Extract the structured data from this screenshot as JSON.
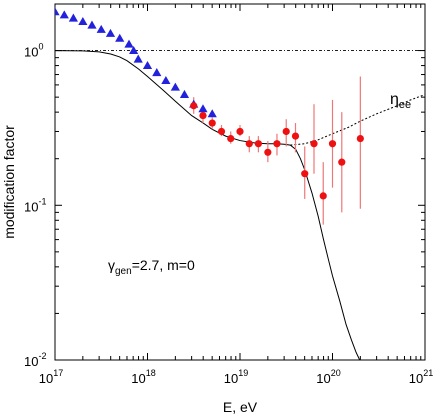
{
  "chart_data": {
    "type": "scatter",
    "title": "",
    "xlabel": "E, eV",
    "ylabel": "modification factor",
    "x_scale": "log",
    "y_scale": "log",
    "xlim": [
      1e+17,
      1e+21
    ],
    "ylim": [
      0.01,
      2.0
    ],
    "x_ticks": [
      {
        "value": 1e+17,
        "base": "10",
        "exp": "17"
      },
      {
        "value": 1e+18,
        "base": "10",
        "exp": "18"
      },
      {
        "value": 1e+19,
        "base": "10",
        "exp": "19"
      },
      {
        "value": 1e+20,
        "base": "10",
        "exp": "20"
      },
      {
        "value": 1e+21,
        "base": "10",
        "exp": "21"
      }
    ],
    "y_ticks": [
      {
        "value": 1.0,
        "base": "10",
        "exp": "0"
      },
      {
        "value": 0.1,
        "base": "10",
        "exp": "-1"
      },
      {
        "value": 0.01,
        "base": "10",
        "exp": "-2"
      }
    ],
    "annotation": {
      "gamma": "γ",
      "sub": "gen",
      "rest": "=2.7, m=0"
    },
    "curve_label": {
      "main": "η",
      "sub": "ee"
    },
    "colors": {
      "triangles": "#2222dd",
      "circles": "#ee1111",
      "errorbars": "#ee7777",
      "curves": "#000000"
    },
    "series": [
      {
        "marker": "triangle",
        "points": [
          {
            "x": 1e+17,
            "y": 1.78
          },
          {
            "x": 1.26e+17,
            "y": 1.7
          },
          {
            "x": 1.58e+17,
            "y": 1.62
          },
          {
            "x": 2e+17,
            "y": 1.54
          },
          {
            "x": 2.51e+17,
            "y": 1.46
          },
          {
            "x": 3.16e+17,
            "y": 1.37
          },
          {
            "x": 3.98e+17,
            "y": 1.29
          },
          {
            "x": 5.01e+17,
            "y": 1.2
          },
          {
            "x": 6.31e+17,
            "y": 1.1
          },
          {
            "x": 7.08e+17,
            "y": 1.0
          },
          {
            "x": 7.94e+17,
            "y": 0.88
          },
          {
            "x": 1e+18,
            "y": 0.8
          },
          {
            "x": 1.26e+18,
            "y": 0.72
          },
          {
            "x": 1.58e+18,
            "y": 0.64
          },
          {
            "x": 2e+18,
            "y": 0.58
          },
          {
            "x": 2.51e+18,
            "y": 0.52
          },
          {
            "x": 3.16e+18,
            "y": 0.45
          },
          {
            "x": 3.98e+18,
            "y": 0.42
          },
          {
            "x": 5.01e+18,
            "y": 0.39
          }
        ]
      },
      {
        "marker": "circle",
        "points": [
          {
            "x": 3.16e+18,
            "y": 0.44,
            "lo": 0.39,
            "hi": 0.5
          },
          {
            "x": 3.98e+18,
            "y": 0.38,
            "lo": 0.34,
            "hi": 0.42
          },
          {
            "x": 5.01e+18,
            "y": 0.34,
            "lo": 0.31,
            "hi": 0.37
          },
          {
            "x": 6.31e+18,
            "y": 0.3,
            "lo": 0.28,
            "hi": 0.33
          },
          {
            "x": 7.94e+18,
            "y": 0.27,
            "lo": 0.25,
            "hi": 0.3
          },
          {
            "x": 1e+19,
            "y": 0.3,
            "lo": 0.28,
            "hi": 0.33
          },
          {
            "x": 1.26e+19,
            "y": 0.25,
            "lo": 0.22,
            "hi": 0.28
          },
          {
            "x": 1.58e+19,
            "y": 0.25,
            "lo": 0.22,
            "hi": 0.28
          },
          {
            "x": 2e+19,
            "y": 0.22,
            "lo": 0.19,
            "hi": 0.26
          },
          {
            "x": 2.51e+19,
            "y": 0.25,
            "lo": 0.21,
            "hi": 0.29
          },
          {
            "x": 3.16e+19,
            "y": 0.3,
            "lo": 0.24,
            "hi": 0.36
          },
          {
            "x": 3.98e+19,
            "y": 0.28,
            "lo": 0.22,
            "hi": 0.34
          },
          {
            "x": 5.01e+19,
            "y": 0.16,
            "lo": 0.11,
            "hi": 0.24
          },
          {
            "x": 6.31e+19,
            "y": 0.25,
            "lo": 0.16,
            "hi": 0.45
          },
          {
            "x": 7.94e+19,
            "y": 0.115,
            "lo": 0.075,
            "hi": 0.19
          },
          {
            "x": 1e+20,
            "y": 0.25,
            "lo": 0.13,
            "hi": 0.48
          },
          {
            "x": 1.26e+20,
            "y": 0.19,
            "lo": 0.09,
            "hi": 0.4
          },
          {
            "x": 2e+20,
            "y": 0.27,
            "lo": 0.095,
            "hi": 0.68
          }
        ]
      },
      {
        "marker": "line-solid",
        "points": [
          {
            "x": 1e+17,
            "y": 1.0
          },
          {
            "x": 2e+17,
            "y": 0.995
          },
          {
            "x": 3e+17,
            "y": 0.98
          },
          {
            "x": 4e+17,
            "y": 0.95
          },
          {
            "x": 5e+17,
            "y": 0.91
          },
          {
            "x": 6e+17,
            "y": 0.86
          },
          {
            "x": 8e+17,
            "y": 0.76
          },
          {
            "x": 1e+18,
            "y": 0.68
          },
          {
            "x": 1.5e+18,
            "y": 0.55
          },
          {
            "x": 2e+18,
            "y": 0.47
          },
          {
            "x": 3e+18,
            "y": 0.38
          },
          {
            "x": 4e+18,
            "y": 0.34
          },
          {
            "x": 5e+18,
            "y": 0.31
          },
          {
            "x": 7e+18,
            "y": 0.28
          },
          {
            "x": 1e+19,
            "y": 0.262
          },
          {
            "x": 1.5e+19,
            "y": 0.252
          },
          {
            "x": 2e+19,
            "y": 0.25
          },
          {
            "x": 2.5e+19,
            "y": 0.25
          },
          {
            "x": 3e+19,
            "y": 0.248
          },
          {
            "x": 3.5e+19,
            "y": 0.245
          },
          {
            "x": 4e+19,
            "y": 0.23
          },
          {
            "x": 4.5e+19,
            "y": 0.2
          },
          {
            "x": 5e+19,
            "y": 0.17
          },
          {
            "x": 6e+19,
            "y": 0.12
          },
          {
            "x": 7e+19,
            "y": 0.085
          },
          {
            "x": 8e+19,
            "y": 0.06
          },
          {
            "x": 9e+19,
            "y": 0.045
          },
          {
            "x": 1e+20,
            "y": 0.035
          },
          {
            "x": 1.2e+20,
            "y": 0.024
          },
          {
            "x": 1.4e+20,
            "y": 0.017
          },
          {
            "x": 1.6e+20,
            "y": 0.0135
          },
          {
            "x": 1.8e+20,
            "y": 0.0112
          },
          {
            "x": 2e+20,
            "y": 0.0098
          }
        ]
      },
      {
        "marker": "line-dotted",
        "points": [
          {
            "x": 3.5e+19,
            "y": 0.245
          },
          {
            "x": 5e+19,
            "y": 0.25
          },
          {
            "x": 7e+19,
            "y": 0.265
          },
          {
            "x": 1e+20,
            "y": 0.29
          },
          {
            "x": 1.5e+20,
            "y": 0.32
          },
          {
            "x": 2e+20,
            "y": 0.35
          },
          {
            "x": 3e+20,
            "y": 0.39
          },
          {
            "x": 5e+20,
            "y": 0.44
          },
          {
            "x": 7e+20,
            "y": 0.48
          },
          {
            "x": 1e+21,
            "y": 0.52
          }
        ]
      },
      {
        "marker": "line-dashdot",
        "points": [
          {
            "x": 1e+17,
            "y": 1.0
          },
          {
            "x": 1e+21,
            "y": 1.0
          }
        ]
      }
    ]
  }
}
